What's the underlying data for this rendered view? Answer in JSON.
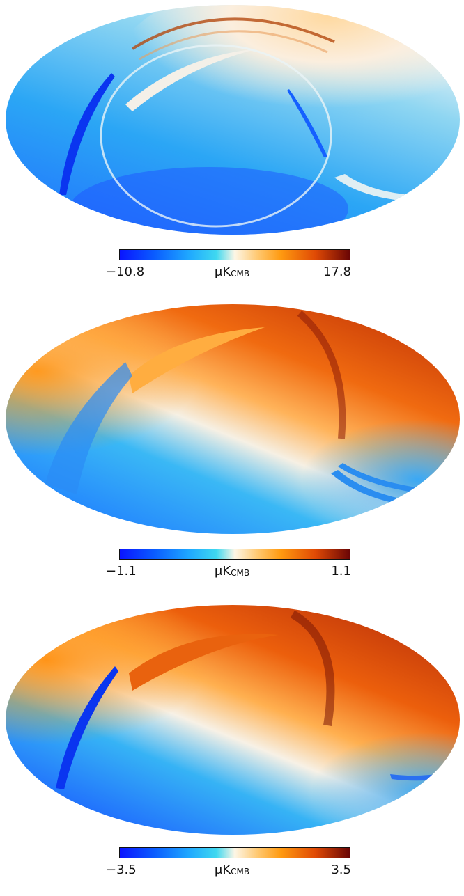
{
  "panels": [
    {
      "min_label": "−10.8",
      "max_label": "17.8",
      "unit_main": "μK",
      "unit_sub": "CMB"
    },
    {
      "min_label": "−1.1",
      "max_label": "1.1",
      "unit_main": "μK",
      "unit_sub": "CMB"
    },
    {
      "min_label": "−3.5",
      "max_label": "3.5",
      "unit_main": "μK",
      "unit_sub": "CMB"
    }
  ],
  "colormap": {
    "stops": [
      "#0a14ff",
      "#0a5cff",
      "#1fa8ff",
      "#3fd8f0",
      "#fdf6e6",
      "#ffc870",
      "#ff9a10",
      "#e04a05",
      "#6a0505"
    ]
  }
}
